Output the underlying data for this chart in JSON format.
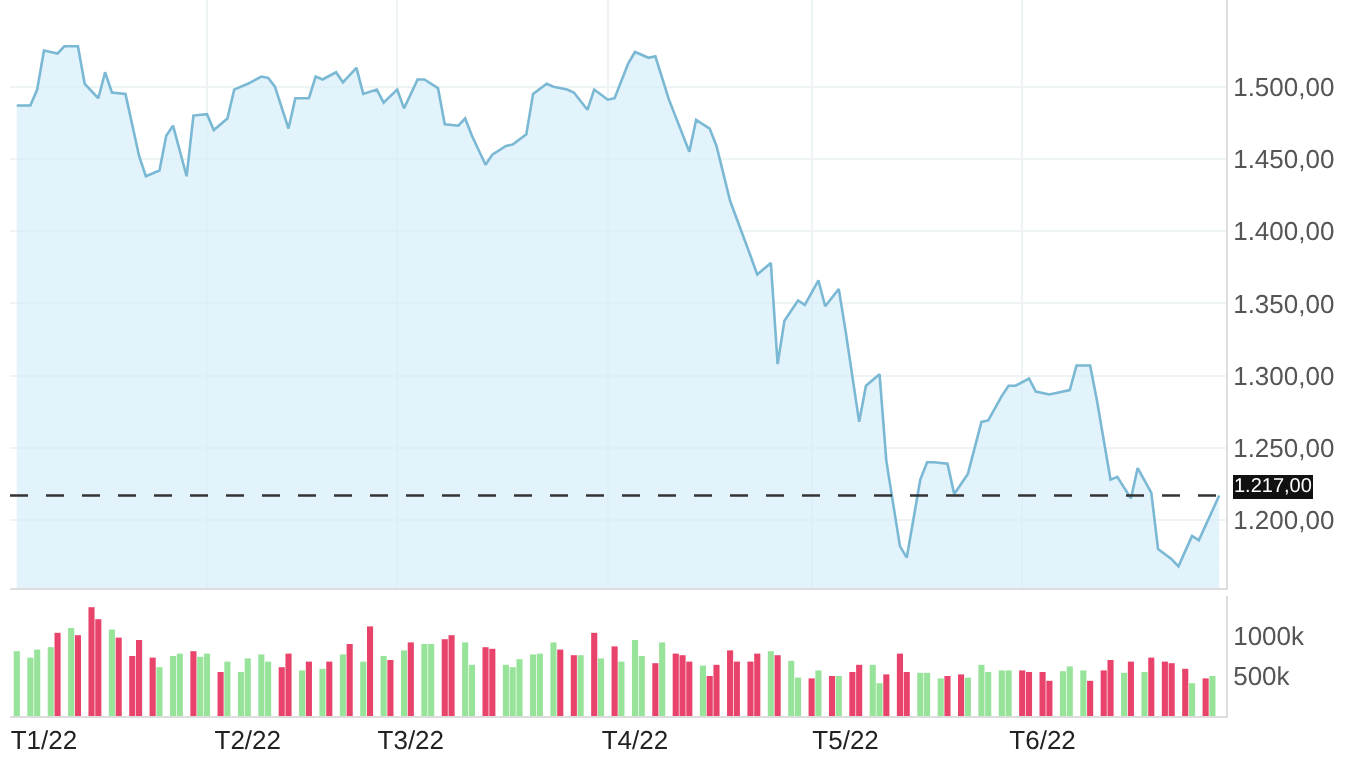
{
  "chart_data": [
    {
      "type": "area",
      "color": "#7ab8d4",
      "grid": true,
      "tick_labels": "y",
      "marker": "none",
      "xlim": [
        "2022-01-03",
        "2022-07-01"
      ],
      "ylim": [
        1153,
        1560
      ],
      "yticks": [
        {
          "value": 1200,
          "label": "1.200,00"
        },
        {
          "value": 1250,
          "label": "1.250,00"
        },
        {
          "value": 1300,
          "label": "1.300,00"
        },
        {
          "value": 1350,
          "label": "1.350,00"
        },
        {
          "value": 1400,
          "label": "1.400,00"
        },
        {
          "value": 1450,
          "label": "1.450,00"
        },
        {
          "value": 1500,
          "label": "1.500,00"
        }
      ],
      "ref_lines": [
        {
          "axis": "y",
          "value": 1217,
          "label": "1.217,00",
          "color": "#333333",
          "line_style": "dashed"
        }
      ],
      "x": [
        "2022-01-04",
        "2022-01-06",
        "2022-01-07",
        "2022-01-08",
        "2022-01-10",
        "2022-01-11",
        "2022-01-13",
        "2022-01-14",
        "2022-01-16",
        "2022-01-17",
        "2022-01-18",
        "2022-01-20",
        "2022-01-22",
        "2022-01-23",
        "2022-01-25",
        "2022-01-26",
        "2022-01-27",
        "2022-01-29",
        "2022-01-30",
        "2022-02-01",
        "2022-02-02",
        "2022-02-04",
        "2022-02-05",
        "2022-02-07",
        "2022-02-09",
        "2022-02-10",
        "2022-02-11",
        "2022-02-13",
        "2022-02-14",
        "2022-02-16",
        "2022-02-17",
        "2022-02-18",
        "2022-02-20",
        "2022-02-21",
        "2022-02-23",
        "2022-02-24",
        "2022-02-26",
        "2022-02-27",
        "2022-03-01",
        "2022-03-02",
        "2022-03-04",
        "2022-03-05",
        "2022-03-07",
        "2022-03-08",
        "2022-03-10",
        "2022-03-11",
        "2022-03-12",
        "2022-03-14",
        "2022-03-15",
        "2022-03-17",
        "2022-03-18",
        "2022-03-20",
        "2022-03-21",
        "2022-03-23",
        "2022-03-24",
        "2022-03-26",
        "2022-03-27",
        "2022-03-29",
        "2022-03-30",
        "2022-04-01",
        "2022-04-02",
        "2022-04-04",
        "2022-04-05",
        "2022-04-07",
        "2022-04-08",
        "2022-04-10",
        "2022-04-13",
        "2022-04-14",
        "2022-04-16",
        "2022-04-17",
        "2022-04-19",
        "2022-04-22",
        "2022-04-23",
        "2022-04-25",
        "2022-04-26",
        "2022-04-27",
        "2022-04-29",
        "2022-04-30",
        "2022-05-02",
        "2022-05-03",
        "2022-05-05",
        "2022-05-06",
        "2022-05-08",
        "2022-05-09",
        "2022-05-11",
        "2022-05-12",
        "2022-05-14",
        "2022-05-15",
        "2022-05-17",
        "2022-05-18",
        "2022-05-19",
        "2022-05-21",
        "2022-05-22",
        "2022-05-24",
        "2022-05-26",
        "2022-05-27",
        "2022-05-29",
        "2022-05-30",
        "2022-05-31",
        "2022-06-02",
        "2022-06-03",
        "2022-06-05",
        "2022-06-08",
        "2022-06-09",
        "2022-06-11",
        "2022-06-12",
        "2022-06-14",
        "2022-06-15",
        "2022-06-17",
        "2022-06-18",
        "2022-06-20",
        "2022-06-21",
        "2022-06-23",
        "2022-06-24",
        "2022-06-26",
        "2022-06-27",
        "2022-06-30"
      ],
      "values": [
        1487,
        1487,
        1498,
        1525,
        1523,
        1528,
        1528,
        1502,
        1492,
        1510,
        1496,
        1495,
        1452,
        1438,
        1442,
        1466,
        1473,
        1438,
        1480,
        1481,
        1470,
        1478,
        1498,
        1502,
        1507,
        1506,
        1500,
        1471,
        1492,
        1492,
        1507,
        1505,
        1510,
        1503,
        1513,
        1495,
        1498,
        1489,
        1498,
        1485,
        1505,
        1505,
        1499,
        1474,
        1473,
        1478,
        1466,
        1446,
        1453,
        1459,
        1460,
        1467,
        1495,
        1502,
        1500,
        1498,
        1496,
        1484,
        1498,
        1491,
        1492,
        1516,
        1524,
        1520,
        1521,
        1491,
        1455,
        1477,
        1471,
        1459,
        1421,
        1383,
        1370,
        1378,
        1308,
        1338,
        1352,
        1349,
        1366,
        1348,
        1360,
        1331,
        1268,
        1293,
        1301,
        1241,
        1182,
        1174,
        1228,
        1240,
        1240,
        1239,
        1218,
        1232,
        1268,
        1269,
        1286,
        1293,
        1293,
        1298,
        1289,
        1287,
        1290,
        1307,
        1307,
        1283,
        1228,
        1230,
        1215,
        1236,
        1219,
        1180,
        1173,
        1168,
        1189,
        1186,
        1217
      ]
    },
    {
      "type": "bar",
      "grid": false,
      "xlim": [
        "2022-01-03",
        "2022-07-01"
      ],
      "xticks": [
        {
          "value": "2022-01-08",
          "label": "T1/22"
        },
        {
          "value": "2022-02-07",
          "label": "T2/22"
        },
        {
          "value": "2022-03-03",
          "label": "T3/22"
        },
        {
          "value": "2022-04-05",
          "label": "T4/22"
        },
        {
          "value": "2022-05-06",
          "label": "T5/22"
        },
        {
          "value": "2022-06-04",
          "label": "T6/22"
        }
      ],
      "ylim": [
        0,
        1500
      ],
      "yticks": [
        {
          "value": 500,
          "label": "500k"
        },
        {
          "value": 1000,
          "label": "1000k"
        }
      ],
      "series": [
        {
          "color": "#98e39a",
          "x": [
            "2022-01-04",
            "2022-01-06",
            "2022-01-07",
            "2022-01-09",
            "2022-01-12",
            "2022-01-18",
            "2022-01-25",
            "2022-01-27",
            "2022-01-28",
            "2022-01-31",
            "2022-02-01",
            "2022-02-04",
            "2022-02-06",
            "2022-02-07",
            "2022-02-09",
            "2022-02-10",
            "2022-02-15",
            "2022-02-18",
            "2022-02-21",
            "2022-02-24",
            "2022-02-27",
            "2022-03-02",
            "2022-03-05",
            "2022-03-06",
            "2022-03-11",
            "2022-03-12",
            "2022-03-17",
            "2022-03-18",
            "2022-03-19",
            "2022-03-21",
            "2022-03-22",
            "2022-03-24",
            "2022-03-28",
            "2022-03-31",
            "2022-04-03",
            "2022-04-05",
            "2022-04-06",
            "2022-04-09",
            "2022-04-15",
            "2022-04-25",
            "2022-04-28",
            "2022-04-29",
            "2022-05-02",
            "2022-05-05",
            "2022-05-10",
            "2022-05-11",
            "2022-05-17",
            "2022-05-18",
            "2022-05-20",
            "2022-05-24",
            "2022-05-26",
            "2022-05-27",
            "2022-05-29",
            "2022-05-30",
            "2022-06-07",
            "2022-06-08",
            "2022-06-10",
            "2022-06-16",
            "2022-06-19",
            "2022-06-26",
            "2022-06-29"
          ],
          "values": [
            810,
            730,
            830,
            860,
            1100,
            1080,
            610,
            750,
            780,
            740,
            780,
            680,
            550,
            720,
            770,
            680,
            570,
            590,
            770,
            680,
            750,
            820,
            900,
            900,
            920,
            640,
            640,
            610,
            710,
            770,
            780,
            920,
            760,
            720,
            680,
            950,
            750,
            920,
            630,
            810,
            690,
            480,
            570,
            500,
            640,
            410,
            540,
            540,
            470,
            480,
            640,
            550,
            570,
            570,
            560,
            620,
            570,
            540,
            550,
            410,
            500
          ]
        },
        {
          "color": "#e8436a",
          "x": [
            "2022-01-10",
            "2022-01-13",
            "2022-01-15",
            "2022-01-16",
            "2022-01-19",
            "2022-01-21",
            "2022-01-22",
            "2022-01-24",
            "2022-01-30",
            "2022-02-03",
            "2022-02-12",
            "2022-02-13",
            "2022-02-16",
            "2022-02-19",
            "2022-02-22",
            "2022-02-25",
            "2022-02-28",
            "2022-03-03",
            "2022-03-08",
            "2022-03-09",
            "2022-03-14",
            "2022-03-15",
            "2022-03-25",
            "2022-03-27",
            "2022-03-30",
            "2022-04-02",
            "2022-04-08",
            "2022-04-11",
            "2022-04-12",
            "2022-04-13",
            "2022-04-16",
            "2022-04-17",
            "2022-04-19",
            "2022-04-20",
            "2022-04-22",
            "2022-04-23",
            "2022-04-26",
            "2022-05-01",
            "2022-05-04",
            "2022-05-07",
            "2022-05-08",
            "2022-05-12",
            "2022-05-14",
            "2022-05-15",
            "2022-05-21",
            "2022-05-23",
            "2022-06-01",
            "2022-06-02",
            "2022-06-04",
            "2022-06-05",
            "2022-06-11",
            "2022-06-13",
            "2022-06-14",
            "2022-06-17",
            "2022-06-20",
            "2022-06-22",
            "2022-06-23",
            "2022-06-25",
            "2022-06-28"
          ],
          "values": [
            1040,
            1010,
            1360,
            1210,
            980,
            750,
            950,
            730,
            810,
            550,
            610,
            780,
            680,
            680,
            900,
            1120,
            700,
            920,
            960,
            1010,
            860,
            840,
            830,
            760,
            1040,
            870,
            660,
            780,
            760,
            680,
            500,
            640,
            820,
            680,
            680,
            780,
            760,
            470,
            500,
            550,
            640,
            520,
            780,
            550,
            500,
            520,
            570,
            550,
            550,
            440,
            440,
            570,
            700,
            680,
            730,
            680,
            660,
            590,
            470
          ]
        }
      ]
    }
  ]
}
